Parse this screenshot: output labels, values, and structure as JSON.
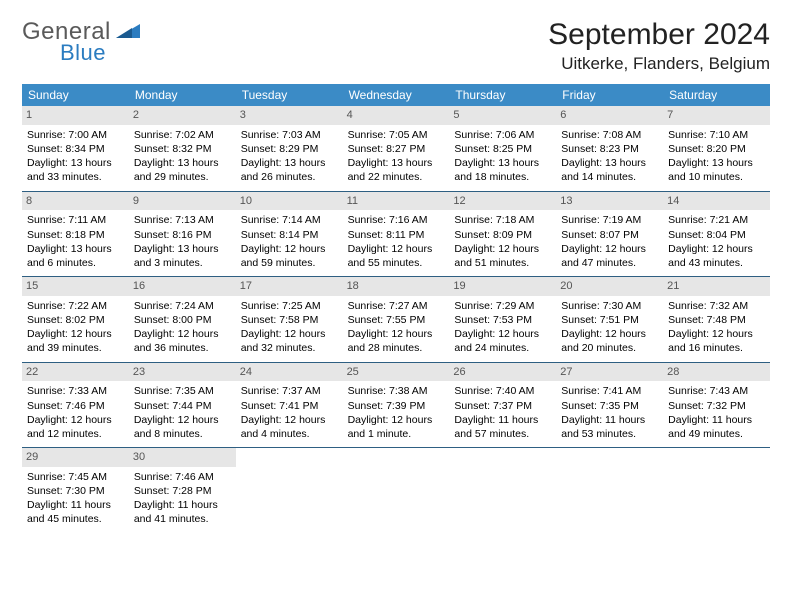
{
  "logo": {
    "text1": "General",
    "text2": "Blue"
  },
  "title": "September 2024",
  "location": "Uitkerke, Flanders, Belgium",
  "colors": {
    "header_bg": "#3b8bc6",
    "header_text": "#ffffff",
    "row_border": "#2e5f82",
    "daynum_bg": "#e6e6e6",
    "logo_gray": "#5a5a5a",
    "logo_blue": "#2b7cc0"
  },
  "weekdays": [
    "Sunday",
    "Monday",
    "Tuesday",
    "Wednesday",
    "Thursday",
    "Friday",
    "Saturday"
  ],
  "weeks": [
    [
      {
        "n": "1",
        "sunrise": "7:00 AM",
        "sunset": "8:34 PM",
        "daylight": "13 hours and 33 minutes."
      },
      {
        "n": "2",
        "sunrise": "7:02 AM",
        "sunset": "8:32 PM",
        "daylight": "13 hours and 29 minutes."
      },
      {
        "n": "3",
        "sunrise": "7:03 AM",
        "sunset": "8:29 PM",
        "daylight": "13 hours and 26 minutes."
      },
      {
        "n": "4",
        "sunrise": "7:05 AM",
        "sunset": "8:27 PM",
        "daylight": "13 hours and 22 minutes."
      },
      {
        "n": "5",
        "sunrise": "7:06 AM",
        "sunset": "8:25 PM",
        "daylight": "13 hours and 18 minutes."
      },
      {
        "n": "6",
        "sunrise": "7:08 AM",
        "sunset": "8:23 PM",
        "daylight": "13 hours and 14 minutes."
      },
      {
        "n": "7",
        "sunrise": "7:10 AM",
        "sunset": "8:20 PM",
        "daylight": "13 hours and 10 minutes."
      }
    ],
    [
      {
        "n": "8",
        "sunrise": "7:11 AM",
        "sunset": "8:18 PM",
        "daylight": "13 hours and 6 minutes."
      },
      {
        "n": "9",
        "sunrise": "7:13 AM",
        "sunset": "8:16 PM",
        "daylight": "13 hours and 3 minutes."
      },
      {
        "n": "10",
        "sunrise": "7:14 AM",
        "sunset": "8:14 PM",
        "daylight": "12 hours and 59 minutes."
      },
      {
        "n": "11",
        "sunrise": "7:16 AM",
        "sunset": "8:11 PM",
        "daylight": "12 hours and 55 minutes."
      },
      {
        "n": "12",
        "sunrise": "7:18 AM",
        "sunset": "8:09 PM",
        "daylight": "12 hours and 51 minutes."
      },
      {
        "n": "13",
        "sunrise": "7:19 AM",
        "sunset": "8:07 PM",
        "daylight": "12 hours and 47 minutes."
      },
      {
        "n": "14",
        "sunrise": "7:21 AM",
        "sunset": "8:04 PM",
        "daylight": "12 hours and 43 minutes."
      }
    ],
    [
      {
        "n": "15",
        "sunrise": "7:22 AM",
        "sunset": "8:02 PM",
        "daylight": "12 hours and 39 minutes."
      },
      {
        "n": "16",
        "sunrise": "7:24 AM",
        "sunset": "8:00 PM",
        "daylight": "12 hours and 36 minutes."
      },
      {
        "n": "17",
        "sunrise": "7:25 AM",
        "sunset": "7:58 PM",
        "daylight": "12 hours and 32 minutes."
      },
      {
        "n": "18",
        "sunrise": "7:27 AM",
        "sunset": "7:55 PM",
        "daylight": "12 hours and 28 minutes."
      },
      {
        "n": "19",
        "sunrise": "7:29 AM",
        "sunset": "7:53 PM",
        "daylight": "12 hours and 24 minutes."
      },
      {
        "n": "20",
        "sunrise": "7:30 AM",
        "sunset": "7:51 PM",
        "daylight": "12 hours and 20 minutes."
      },
      {
        "n": "21",
        "sunrise": "7:32 AM",
        "sunset": "7:48 PM",
        "daylight": "12 hours and 16 minutes."
      }
    ],
    [
      {
        "n": "22",
        "sunrise": "7:33 AM",
        "sunset": "7:46 PM",
        "daylight": "12 hours and 12 minutes."
      },
      {
        "n": "23",
        "sunrise": "7:35 AM",
        "sunset": "7:44 PM",
        "daylight": "12 hours and 8 minutes."
      },
      {
        "n": "24",
        "sunrise": "7:37 AM",
        "sunset": "7:41 PM",
        "daylight": "12 hours and 4 minutes."
      },
      {
        "n": "25",
        "sunrise": "7:38 AM",
        "sunset": "7:39 PM",
        "daylight": "12 hours and 1 minute."
      },
      {
        "n": "26",
        "sunrise": "7:40 AM",
        "sunset": "7:37 PM",
        "daylight": "11 hours and 57 minutes."
      },
      {
        "n": "27",
        "sunrise": "7:41 AM",
        "sunset": "7:35 PM",
        "daylight": "11 hours and 53 minutes."
      },
      {
        "n": "28",
        "sunrise": "7:43 AM",
        "sunset": "7:32 PM",
        "daylight": "11 hours and 49 minutes."
      }
    ],
    [
      {
        "n": "29",
        "sunrise": "7:45 AM",
        "sunset": "7:30 PM",
        "daylight": "11 hours and 45 minutes."
      },
      {
        "n": "30",
        "sunrise": "7:46 AM",
        "sunset": "7:28 PM",
        "daylight": "11 hours and 41 minutes."
      },
      {
        "empty": true
      },
      {
        "empty": true
      },
      {
        "empty": true
      },
      {
        "empty": true
      },
      {
        "empty": true
      }
    ]
  ],
  "labels": {
    "sunrise": "Sunrise:",
    "sunset": "Sunset:",
    "daylight": "Daylight:"
  }
}
